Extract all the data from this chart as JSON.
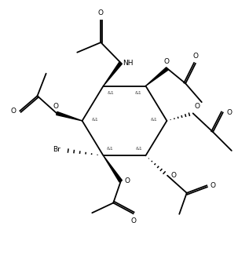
{
  "bg_color": "#ffffff",
  "ring_color": "#000000",
  "lw": 1.3,
  "figsize": [
    3.17,
    3.3
  ],
  "dpi": 100,
  "xlim": [
    0,
    10
  ],
  "ylim": [
    0,
    10.4
  ]
}
